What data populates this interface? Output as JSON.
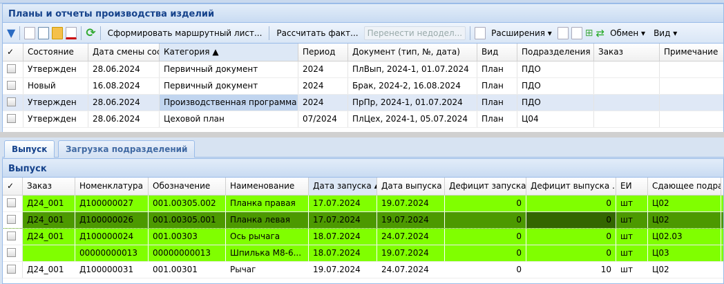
{
  "top_panel": {
    "title": "Планы и отчеты производства изделий",
    "toolbar": {
      "form_route": "Сформировать маршрутный лист...",
      "calc_fact": "Рассчитать факт...",
      "transfer": "Перенести недодел...",
      "extensions": "Расширения ▾",
      "exchange": "Обмен ▾",
      "view": "Вид ▾"
    },
    "columns": [
      "✓",
      "Состояние",
      "Дата смены сост",
      "Категория ▲",
      "Период",
      "Документ (тип, №, дата)",
      "Вид",
      "Подразделения",
      "Заказ",
      "Примечание"
    ],
    "rows": [
      [
        "",
        "Утвержден",
        "28.06.2024",
        "Первичный документ",
        "2024",
        "ПлВып, 2024-1, 01.07.2024",
        "План",
        "ПДО",
        "",
        ""
      ],
      [
        "",
        "Новый",
        "16.08.2024",
        "Первичный документ",
        "2024",
        "Брак, 2024-2, 16.08.2024",
        "План",
        "ПДО",
        "",
        ""
      ],
      [
        "",
        "Утвержден",
        "28.06.2024",
        "Производственная программа",
        "2024",
        "ПрПр, 2024-1, 01.07.2024",
        "План",
        "ПДО",
        "",
        ""
      ],
      [
        "",
        "Утвержден",
        "28.06.2024",
        "Цеховой план",
        "07/2024",
        "ПлЦех, 2024-1, 05.07.2024",
        "План",
        "Ц04",
        "",
        ""
      ]
    ]
  },
  "tabs": [
    "Выпуск",
    "Загрузка подразделений"
  ],
  "bottom_panel": {
    "title": "Выпуск",
    "columns": [
      "✓",
      "Заказ",
      "Номенклатура",
      "Обозначение",
      "Наименование",
      "Дата запуска ▴",
      "Дата выпуска",
      "Дефицит запуска",
      "Дефицит выпуска  ..",
      "ЕИ",
      "Сдающее подраз"
    ],
    "rows": [
      [
        "",
        "Д24_001",
        "Д100000027",
        "001.00305.002",
        "Планка правая",
        "17.07.2024",
        "19.07.2024",
        "0",
        "0",
        "шт",
        "Ц02"
      ],
      [
        "",
        "Д24_001",
        "Д100000026",
        "001.00305.001",
        "Планка левая",
        "17.07.2024",
        "19.07.2024",
        "0",
        "0",
        "шт",
        "Ц02"
      ],
      [
        "",
        "Д24_001",
        "Д100000024",
        "001.00303",
        "Ось рычага",
        "18.07.2024",
        "24.07.2024",
        "0",
        "0",
        "шт",
        "Ц02.03"
      ],
      [
        "",
        "",
        "00000000013",
        "00000000013",
        "Шпилька М8-6...",
        "18.07.2024",
        "19.07.2024",
        "0",
        "0",
        "шт",
        "Ц03"
      ],
      [
        "",
        "Д24_001",
        "Д100000031",
        "001.00301",
        "Рычаг",
        "19.07.2024",
        "24.07.2024",
        "0",
        "10",
        "шт",
        "Ц02"
      ]
    ],
    "row_colors": [
      "#80ff00",
      "#4c9900",
      "#80ff00",
      "#80ff00",
      "#ffffff"
    ],
    "selected_cell_color": "#336600"
  }
}
